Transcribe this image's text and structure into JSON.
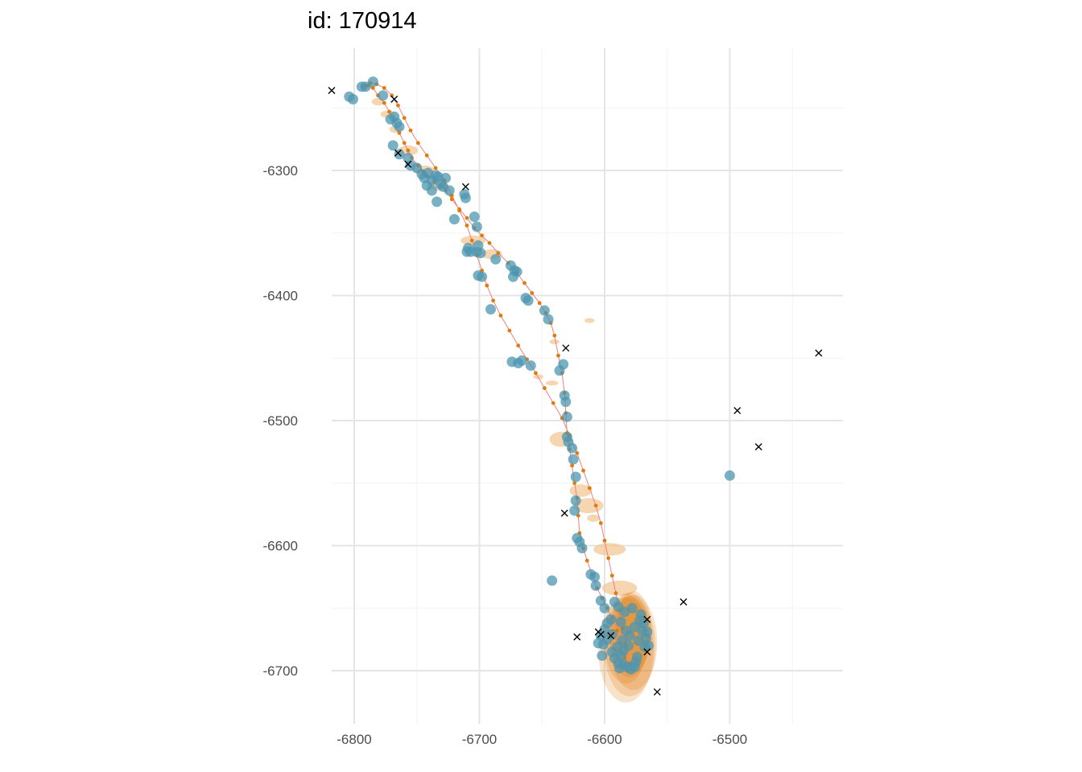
{
  "chart_data": {
    "type": "scatter",
    "title": "id: 170914",
    "xlabel": "",
    "ylabel": "",
    "xlim": [
      -6840,
      -6415
    ],
    "ylim": [
      -6740,
      -6225
    ],
    "grid": true,
    "legend": "none",
    "x_ticks": [
      -6800,
      -6700,
      -6600,
      -6500
    ],
    "y_ticks": [
      -6300,
      -6400,
      -6500,
      -6600,
      -6700
    ],
    "colors": {
      "observed": "#4e95b0",
      "track": "#f08080",
      "predicted": "#e07b0c",
      "ellipse": "#f2c48f",
      "outlier": "#000000",
      "grid": "#e5e5e5"
    },
    "series": [
      {
        "role": "observed-locations",
        "marker": "circle",
        "points": [
          [
            -6804,
            -6241
          ],
          [
            -6801,
            -6243
          ],
          [
            -6794,
            -6233
          ],
          [
            -6791,
            -6233
          ],
          [
            -6785,
            -6229
          ],
          [
            -6777,
            -6240
          ],
          [
            -6771,
            -6259
          ],
          [
            -6768,
            -6257
          ],
          [
            -6766,
            -6262
          ],
          [
            -6764,
            -6265
          ],
          [
            -6769,
            -6280
          ],
          [
            -6764,
            -6287
          ],
          [
            -6757,
            -6290
          ],
          [
            -6755,
            -6296
          ],
          [
            -6750,
            -6298
          ],
          [
            -6746,
            -6303
          ],
          [
            -6744,
            -6306
          ],
          [
            -6742,
            -6312
          ],
          [
            -6741,
            -6302
          ],
          [
            -6738,
            -6308
          ],
          [
            -6738,
            -6316
          ],
          [
            -6735,
            -6304
          ],
          [
            -6733,
            -6305
          ],
          [
            -6734,
            -6325
          ],
          [
            -6731,
            -6311
          ],
          [
            -6729,
            -6313
          ],
          [
            -6727,
            -6306
          ],
          [
            -6724,
            -6316
          ],
          [
            -6720,
            -6339
          ],
          [
            -6712,
            -6319
          ],
          [
            -6711,
            -6322
          ],
          [
            -6709,
            -6362
          ],
          [
            -6710,
            -6365
          ],
          [
            -6707,
            -6365
          ],
          [
            -6704,
            -6337
          ],
          [
            -6702,
            -6345
          ],
          [
            -6701,
            -6360
          ],
          [
            -6702,
            -6365
          ],
          [
            -6699,
            -6366
          ],
          [
            -6701,
            -6384
          ],
          [
            -6698,
            -6385
          ],
          [
            -6691,
            -6411
          ],
          [
            -6687,
            -6371
          ],
          [
            -6675,
            -6376
          ],
          [
            -6672,
            -6380
          ],
          [
            -6673,
            -6385
          ],
          [
            -6670,
            -6381
          ],
          [
            -6663,
            -6402
          ],
          [
            -6661,
            -6404
          ],
          [
            -6674,
            -6453
          ],
          [
            -6669,
            -6454
          ],
          [
            -6666,
            -6452
          ],
          [
            -6659,
            -6456
          ],
          [
            -6648,
            -6412
          ],
          [
            -6645,
            -6419
          ],
          [
            -6636,
            -6460
          ],
          [
            -6633,
            -6455
          ],
          [
            -6632,
            -6480
          ],
          [
            -6631,
            -6485
          ],
          [
            -6630,
            -6497
          ],
          [
            -6630,
            -6513
          ],
          [
            -6629,
            -6517
          ],
          [
            -6626,
            -6522
          ],
          [
            -6625,
            -6531
          ],
          [
            -6623,
            -6545
          ],
          [
            -6623,
            -6564
          ],
          [
            -6624,
            -6572
          ],
          [
            -6622,
            -6594
          ],
          [
            -6620,
            -6597
          ],
          [
            -6618,
            -6602
          ],
          [
            -6642,
            -6628
          ],
          [
            -6611,
            -6623
          ],
          [
            -6607,
            -6632
          ],
          [
            -6608,
            -6625
          ],
          [
            -6603,
            -6644
          ],
          [
            -6600,
            -6650
          ],
          [
            -6592,
            -6645
          ],
          [
            -6589,
            -6649
          ],
          [
            -6587,
            -6661
          ],
          [
            -6584,
            -6653
          ],
          [
            -6595,
            -6659
          ],
          [
            -6594,
            -6671
          ],
          [
            -6598,
            -6675
          ],
          [
            -6600,
            -6667
          ],
          [
            -6603,
            -6672
          ],
          [
            -6601,
            -6679
          ],
          [
            -6605,
            -6678
          ],
          [
            -6602,
            -6688
          ],
          [
            -6594,
            -6685
          ],
          [
            -6592,
            -6690
          ],
          [
            -6589,
            -6694
          ],
          [
            -6587,
            -6688
          ],
          [
            -6588,
            -6698
          ],
          [
            -6585,
            -6695
          ],
          [
            -6582,
            -6697
          ],
          [
            -6579,
            -6699
          ],
          [
            -6576,
            -6697
          ],
          [
            -6575,
            -6693
          ],
          [
            -6574,
            -6689
          ],
          [
            -6573,
            -6676
          ],
          [
            -6570,
            -6668
          ],
          [
            -6569,
            -6662
          ],
          [
            -6567,
            -6674
          ],
          [
            -6568,
            -6681
          ],
          [
            -6566,
            -6669
          ],
          [
            -6565,
            -6680
          ],
          [
            -6572,
            -6660
          ],
          [
            -6571,
            -6655
          ],
          [
            -6578,
            -6650
          ],
          [
            -6576,
            -6665
          ],
          [
            -6580,
            -6672
          ],
          [
            -6583,
            -6668
          ],
          [
            -6581,
            -6680
          ],
          [
            -6585,
            -6684
          ],
          [
            -6586,
            -6676
          ],
          [
            -6590,
            -6681
          ],
          [
            -6598,
            -6662
          ],
          [
            -6500,
            -6544
          ]
        ]
      },
      {
        "role": "predicted-track",
        "marker": "line+dot",
        "points": [
          [
            -6793,
            -6233
          ],
          [
            -6789,
            -6232
          ],
          [
            -6785,
            -6234
          ],
          [
            -6781,
            -6240
          ],
          [
            -6776,
            -6246
          ],
          [
            -6772,
            -6253
          ],
          [
            -6768,
            -6260
          ],
          [
            -6764,
            -6270
          ],
          [
            -6760,
            -6278
          ],
          [
            -6757,
            -6284
          ],
          [
            -6754,
            -6290
          ],
          [
            -6749,
            -6296
          ],
          [
            -6745,
            -6301
          ],
          [
            -6741,
            -6305
          ],
          [
            -6736,
            -6309
          ],
          [
            -6731,
            -6312
          ],
          [
            -6727,
            -6316
          ],
          [
            -6722,
            -6323
          ],
          [
            -6716,
            -6331
          ],
          [
            -6710,
            -6338
          ],
          [
            -6704,
            -6346
          ],
          [
            -6698,
            -6352
          ],
          [
            -6692,
            -6358
          ],
          [
            -6685,
            -6366
          ],
          [
            -6677,
            -6374
          ],
          [
            -6670,
            -6382
          ],
          [
            -6664,
            -6390
          ],
          [
            -6658,
            -6398
          ],
          [
            -6652,
            -6406
          ],
          [
            -6647,
            -6414
          ],
          [
            -6643,
            -6422
          ],
          [
            -6640,
            -6432
          ],
          [
            -6637,
            -6448
          ],
          [
            -6634,
            -6462
          ],
          [
            -6632,
            -6478
          ],
          [
            -6631,
            -6494
          ],
          [
            -6630,
            -6510
          ],
          [
            -6628,
            -6523
          ],
          [
            -6626,
            -6536
          ],
          [
            -6624,
            -6550
          ],
          [
            -6622,
            -6562
          ],
          [
            -6621,
            -6576
          ],
          [
            -6620,
            -6590
          ],
          [
            -6617,
            -6602
          ],
          [
            -6614,
            -6612
          ],
          [
            -6610,
            -6623
          ],
          [
            -6606,
            -6634
          ],
          [
            -6602,
            -6642
          ],
          [
            -6598,
            -6650
          ],
          [
            -6594,
            -6658
          ],
          [
            -6590,
            -6668
          ],
          [
            -6587,
            -6678
          ],
          [
            -6584,
            -6690
          ],
          [
            -6582,
            -6700
          ],
          [
            -6580,
            -6694
          ],
          [
            -6583,
            -6680
          ],
          [
            -6586,
            -6666
          ],
          [
            -6588,
            -6652
          ],
          [
            -6591,
            -6638
          ],
          [
            -6594,
            -6624
          ],
          [
            -6597,
            -6610
          ],
          [
            -6600,
            -6596
          ],
          [
            -6603,
            -6582
          ],
          [
            -6607,
            -6568
          ],
          [
            -6612,
            -6554
          ],
          [
            -6617,
            -6540
          ],
          [
            -6622,
            -6526
          ],
          [
            -6628,
            -6512
          ],
          [
            -6634,
            -6498
          ],
          [
            -6641,
            -6486
          ],
          [
            -6648,
            -6474
          ],
          [
            -6655,
            -6462
          ],
          [
            -6662,
            -6451
          ],
          [
            -6669,
            -6440
          ],
          [
            -6676,
            -6428
          ],
          [
            -6683,
            -6416
          ],
          [
            -6689,
            -6404
          ],
          [
            -6694,
            -6392
          ],
          [
            -6698,
            -6380
          ],
          [
            -6702,
            -6368
          ],
          [
            -6706,
            -6356
          ],
          [
            -6710,
            -6344
          ],
          [
            -6716,
            -6332
          ],
          [
            -6722,
            -6320
          ],
          [
            -6728,
            -6308
          ],
          [
            -6735,
            -6298
          ],
          [
            -6742,
            -6288
          ],
          [
            -6749,
            -6278
          ],
          [
            -6755,
            -6268
          ],
          [
            -6760,
            -6258
          ],
          [
            -6765,
            -6248
          ],
          [
            -6770,
            -6240
          ],
          [
            -6776,
            -6234
          ],
          [
            -6782,
            -6231
          ],
          [
            -6787,
            -6230
          ],
          [
            -6791,
            -6232
          ]
        ]
      },
      {
        "role": "predicted-ellipses",
        "marker": "ellipse",
        "points": [
          [
            -6790,
            -6233,
            5,
            2
          ],
          [
            -6781,
            -6245,
            5,
            3
          ],
          [
            -6773,
            -6255,
            6,
            3
          ],
          [
            -6767,
            -6267,
            5,
            3
          ],
          [
            -6757,
            -6284,
            8,
            4
          ],
          [
            -6744,
            -6300,
            8,
            4
          ],
          [
            -6734,
            -6312,
            8,
            4
          ],
          [
            -6705,
            -6356,
            10,
            4
          ],
          [
            -6690,
            -6367,
            8,
            4
          ],
          [
            -6640,
            -6437,
            4,
            2
          ],
          [
            -6642,
            -6470,
            5,
            2
          ],
          [
            -6653,
            -6465,
            4,
            2
          ],
          [
            -6635,
            -6515,
            9,
            6
          ],
          [
            -6619,
            -6556,
            9,
            5
          ],
          [
            -6613,
            -6568,
            12,
            6
          ],
          [
            -6596,
            -6603,
            13,
            5
          ],
          [
            -6588,
            -6634,
            14,
            6
          ],
          [
            -6609,
            -6578,
            5,
            3
          ],
          [
            -6612,
            -6420,
            4,
            2
          ]
        ]
      },
      {
        "role": "outliers",
        "marker": "cross",
        "points": [
          [
            -6818,
            -6236
          ],
          [
            -6768,
            -6243
          ],
          [
            -6765,
            -6286
          ],
          [
            -6757,
            -6295
          ],
          [
            -6711,
            -6313
          ],
          [
            -6631,
            -6442
          ],
          [
            -6632,
            -6574
          ],
          [
            -6622,
            -6673
          ],
          [
            -6605,
            -6669
          ],
          [
            -6603,
            -6671
          ],
          [
            -6595,
            -6672
          ],
          [
            -6537,
            -6645
          ],
          [
            -6566,
            -6659
          ],
          [
            -6566,
            -6685
          ],
          [
            -6558,
            -6717
          ],
          [
            -6494,
            -6492
          ],
          [
            -6477,
            -6521
          ],
          [
            -6429,
            -6446
          ]
        ]
      },
      {
        "role": "cluster-blob",
        "marker": "blob",
        "points": [
          [
            -6580,
            -6676,
            22,
            42
          ]
        ]
      }
    ]
  }
}
